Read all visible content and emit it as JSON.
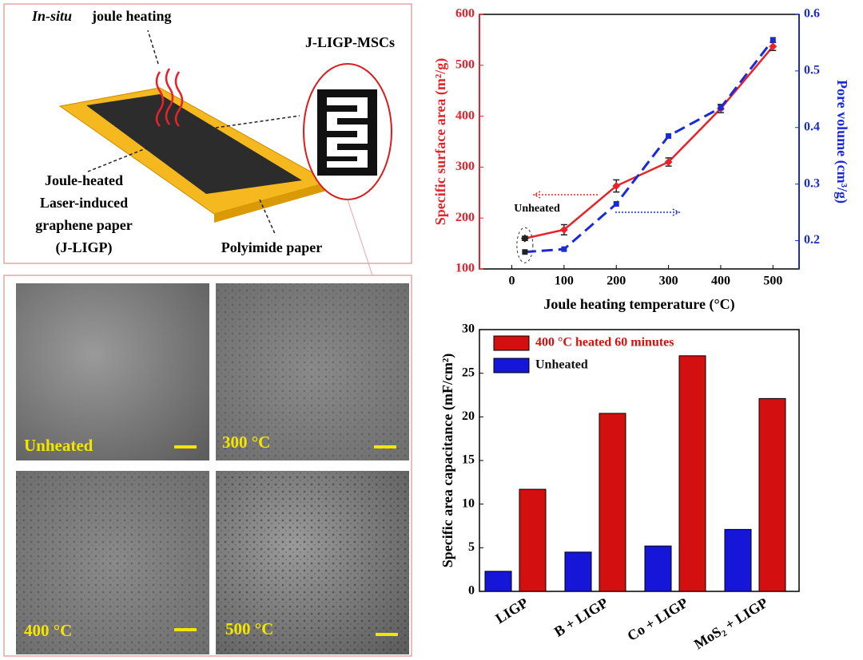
{
  "schematic": {
    "heating_italic": "In-situ",
    "heating_label": "joule heating",
    "device_label": "J-LIGP-MSCs",
    "sheet_label": [
      "Joule-heated",
      "Laser-induced",
      "graphene paper",
      "(J-LIGP)"
    ],
    "substrate_label": "Polyimide paper"
  },
  "sem": {
    "panels": [
      "Unheated",
      "300 °C",
      "400 °C",
      "500 °C"
    ]
  },
  "chart_data": [
    {
      "type": "line",
      "x_label": "Joule heating temperature (°C)",
      "y_label": "Specific surface area (m²/g)",
      "y2_label": "Pore volume (cm³/g)",
      "annotation": "Unheated",
      "x": [
        25,
        100,
        200,
        300,
        400,
        500
      ],
      "xlim": [
        -62,
        550
      ],
      "xticks": [
        0,
        100,
        200,
        300,
        400,
        500
      ],
      "ylim": [
        100,
        600
      ],
      "yticks": [
        100,
        200,
        300,
        400,
        500,
        600
      ],
      "y2lim": [
        0.15,
        0.6
      ],
      "y2ticks": [
        0.2,
        0.3,
        0.4,
        0.5,
        0.6
      ],
      "series": [
        {
          "name": "Specific surface area",
          "color": "#e8222a",
          "values": [
            160,
            177,
            263,
            310,
            415,
            537
          ],
          "errors": [
            4,
            10,
            12,
            8,
            8,
            8
          ],
          "axis": "y"
        },
        {
          "name": "Pore volume",
          "color": "#1a2bd6",
          "values": [
            0.18,
            0.185,
            0.265,
            0.385,
            0.435,
            0.555
          ],
          "axis": "y2",
          "dashed": true
        }
      ]
    },
    {
      "type": "bar",
      "y_label": "Specific area capacitance (mF/cm²)",
      "categories": [
        "LIGP",
        "B + LIGP",
        "Co + LIGP",
        "MoS₂ + LIGP"
      ],
      "ylim": [
        0,
        30
      ],
      "yticks": [
        0,
        5,
        10,
        15,
        20,
        25,
        30
      ],
      "legend": "top-left",
      "series": [
        {
          "name": "400 °C heated 60 minutes",
          "color": "#d40f0f",
          "values": [
            11.7,
            20.4,
            27.0,
            22.1
          ]
        },
        {
          "name": "Unheated",
          "color": "#1616d8",
          "values": [
            2.3,
            4.5,
            5.2,
            7.1
          ]
        }
      ]
    }
  ]
}
